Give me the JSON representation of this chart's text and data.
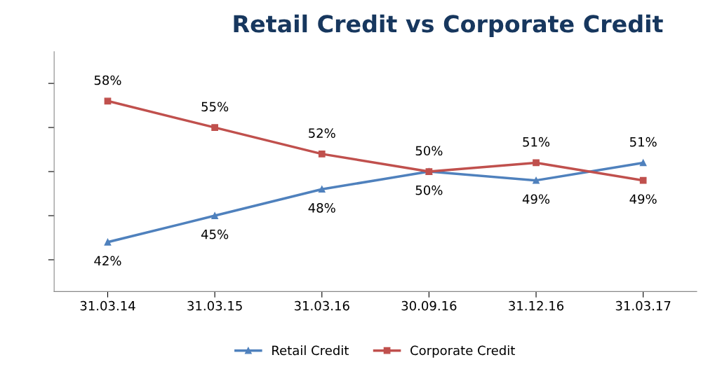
{
  "chart_data": {
    "type": "line",
    "title": "Retail Credit vs Corporate Credit",
    "categories": [
      "31.03.14",
      "31.03.15",
      "31.03.16",
      "30.09.16",
      "31.12.16",
      "31.03.17"
    ],
    "series": [
      {
        "name": "Retail Credit",
        "color": "#4f81bd",
        "marker": "triangle",
        "values": [
          42,
          45,
          48,
          50,
          49,
          51
        ],
        "value_labels": [
          "42%",
          "45%",
          "48%",
          "50%",
          "49%",
          "51%"
        ]
      },
      {
        "name": "Corporate Credit",
        "color": "#c0504d",
        "marker": "square",
        "values": [
          58,
          55,
          52,
          50,
          51,
          49
        ],
        "value_labels": [
          "58%",
          "55%",
          "52%",
          "50%",
          "51%",
          "49%"
        ]
      }
    ],
    "grid": false,
    "legend": "bottom",
    "tick_labels": "x",
    "line_style": "solid"
  }
}
